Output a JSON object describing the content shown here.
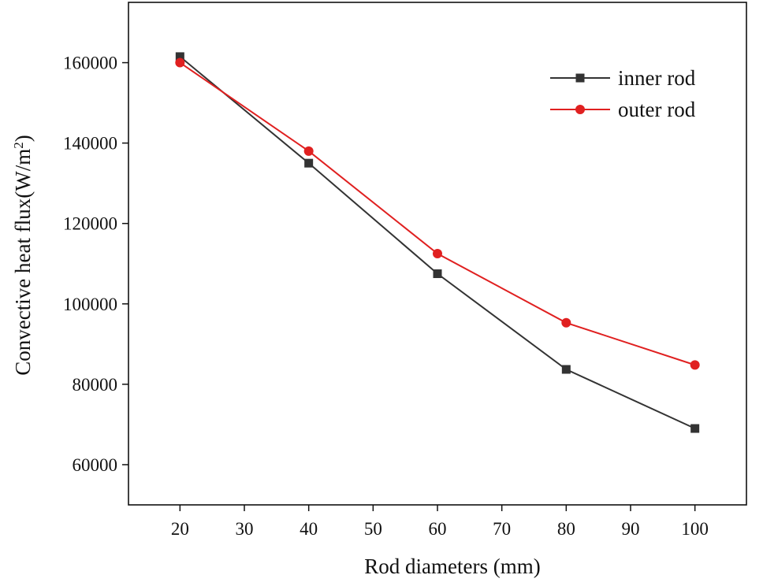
{
  "chart_data": {
    "type": "line",
    "title": "",
    "xlabel": "Rod diameters (mm)",
    "ylabel_main": "Convective heat flux(W/m",
    "ylabel_sup": "2",
    "ylabel_end": ")",
    "xlim": [
      12,
      108
    ],
    "ylim": [
      50000,
      175000
    ],
    "xticks": [
      20,
      30,
      40,
      50,
      60,
      70,
      80,
      90,
      100
    ],
    "yticks": [
      60000,
      80000,
      100000,
      120000,
      140000,
      160000
    ],
    "x": [
      20,
      40,
      60,
      80,
      100
    ],
    "series": [
      {
        "name": "inner rod",
        "color": "#333333",
        "marker": "square",
        "values": [
          161500,
          135000,
          107500,
          83700,
          69000
        ]
      },
      {
        "name": "outer rod",
        "color": "#e02020",
        "marker": "circle",
        "values": [
          160000,
          138000,
          112500,
          95300,
          84800
        ]
      }
    ],
    "legend_position": "top-right",
    "grid": false
  }
}
